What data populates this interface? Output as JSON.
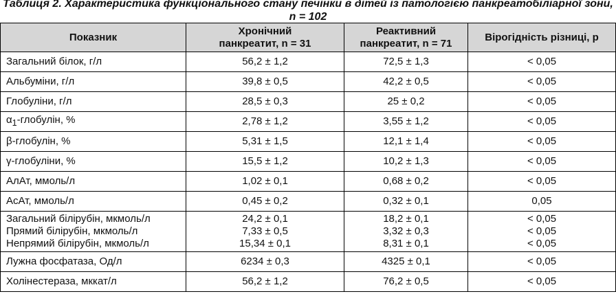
{
  "title": "Таблиця 2. Характеристика функціонального стану печінки в дітей із патологією панкреатобіліарної зони, n = 102",
  "table": {
    "header": [
      "Показник",
      [
        "Хронічний",
        "панкреатит, n = 31"
      ],
      [
        "Реактивний",
        "панкреатит, n = 71"
      ],
      "Вірогідність різниці, р"
    ],
    "rows": [
      [
        "Загальний білок, г/л",
        "56,2 ± 1,2",
        "72,5 ± 1,3",
        "< 0,05"
      ],
      [
        "Альбуміни, г/л",
        "39,8 ± 0,5",
        "42,2 ± 0,5",
        "< 0,05"
      ],
      [
        "Глобуліни, г/л",
        "28,5 ± 0,3",
        "25 ± 0,2",
        "< 0,05"
      ],
      [
        {
          "symbol": "α",
          "sub": "1",
          "text": "-глобулін, %"
        },
        "2,78 ± 1,2",
        "3,55 ± 1,2",
        "< 0,05"
      ],
      [
        "β-глобулін, %",
        "5,31 ± 1,5",
        "12,1 ± 1,4",
        "< 0,05"
      ],
      [
        "γ-глобуліни, %",
        "15,5 ± 1,2",
        "10,2 ± 1,3",
        "< 0,05"
      ],
      [
        "АлАт, ммоль/л",
        "1,02 ± 0,1",
        "0,68 ± 0,2",
        "< 0,05"
      ],
      [
        "АсАт, ммоль/л",
        "0,45 ± 0,2",
        "0,32 ± 0,1",
        "0,05"
      ],
      [
        [
          "Загальний білірубін, мкмоль/л",
          "Прямий білірубін, мкмоль/л",
          "Непрямий білірубін, мкмоль/л"
        ],
        [
          "24,2 ± 0,1",
          "7,33 ± 0,5",
          "15,34 ± 0,1"
        ],
        [
          "18,2 ± 0,1",
          "3,32 ± 0,3",
          "8,31 ± 0,1"
        ],
        [
          "< 0,05",
          "< 0,05",
          "< 0,05"
        ]
      ],
      [
        "Лужна фосфатаза, Од/л",
        "6234 ± 0,3",
        "4325 ± 0,1",
        "< 0,05"
      ],
      [
        "Холінестераза, мккат/л",
        "56,2 ± 1,2",
        "76,2 ± 0,5",
        "< 0,05"
      ]
    ]
  }
}
